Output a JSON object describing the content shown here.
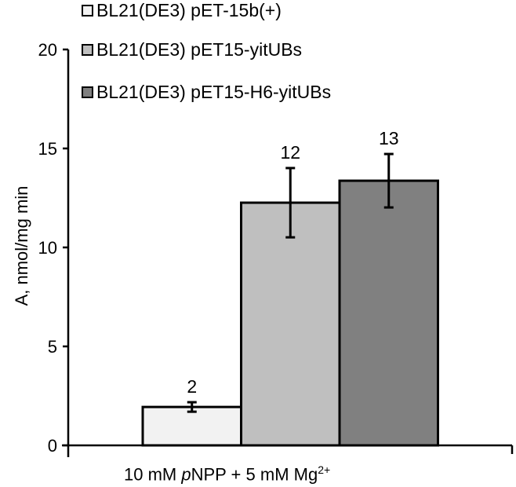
{
  "chart_data": {
    "type": "bar",
    "title": "",
    "xlabel": "10 mM pNPP + 5 mM Mg2+",
    "xlabel_parts": {
      "pre": "10 mM ",
      "italic": "p",
      "mid": "NPP + 5 mM Mg",
      "sup": "2+"
    },
    "ylabel": "A, nmol/mg min",
    "ylim": [
      0,
      20
    ],
    "yticks": [
      0,
      5,
      10,
      15,
      20
    ],
    "grid": false,
    "legend_position": "top-left",
    "categories": [
      "10 mM pNPP + 5 mM Mg2+"
    ],
    "series": [
      {
        "name": "BL21(DE3) pET-15b(+)",
        "values": [
          1.94
        ],
        "error": [
          0.24
        ],
        "data_label": "2",
        "color": "#f2f2f2"
      },
      {
        "name": "BL21(DE3) pET15-yitUBs",
        "values": [
          12.26
        ],
        "error": [
          1.75
        ],
        "data_label": "12",
        "color": "#bfbfbf"
      },
      {
        "name": "BL21(DE3) pET15-H6-yitUBs",
        "values": [
          13.37
        ],
        "error": [
          1.35
        ],
        "data_label": "13",
        "color": "#808080"
      }
    ]
  }
}
